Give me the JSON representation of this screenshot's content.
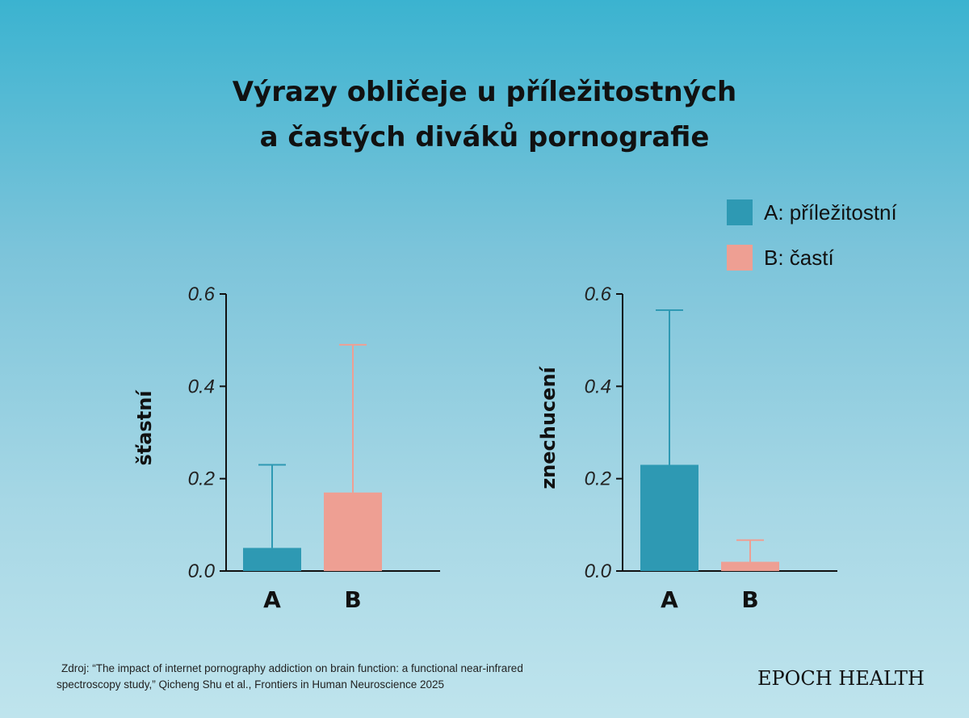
{
  "title_line1": "Výrazy obličeje u příležitostných",
  "title_line2": "a častých diváků pornografie",
  "legend": [
    {
      "label": "A: příležitostní",
      "color": "#2e99b3"
    },
    {
      "label": "B: častí",
      "color": "#ee9f93"
    }
  ],
  "chart_data": [
    {
      "type": "bar",
      "ylabel": "šťastní",
      "categories": [
        "A",
        "B"
      ],
      "values": [
        0.05,
        0.17
      ],
      "error_upper": [
        0.23,
        0.49
      ],
      "colors": [
        "#2e99b3",
        "#ee9f93"
      ],
      "ylim": [
        0,
        0.6
      ],
      "yticks": [
        "0.0",
        "0.2",
        "0.4",
        "0.6"
      ]
    },
    {
      "type": "bar",
      "ylabel": "znechucení",
      "categories": [
        "A",
        "B"
      ],
      "values": [
        0.23,
        0.02
      ],
      "error_upper": [
        0.565,
        0.067
      ],
      "colors": [
        "#2e99b3",
        "#ee9f93"
      ],
      "ylim": [
        0,
        0.6
      ],
      "yticks": [
        "0.0",
        "0.2",
        "0.4",
        "0.6"
      ]
    }
  ],
  "source_line1": "Zdroj: “The impact of internet pornography addiction on brain function: a functional near-infrared",
  "source_line2": "spectroscopy study,” Qicheng Shu et al., Frontiers in Human Neuroscience 2025",
  "brand": "EPOCH HEALTH"
}
